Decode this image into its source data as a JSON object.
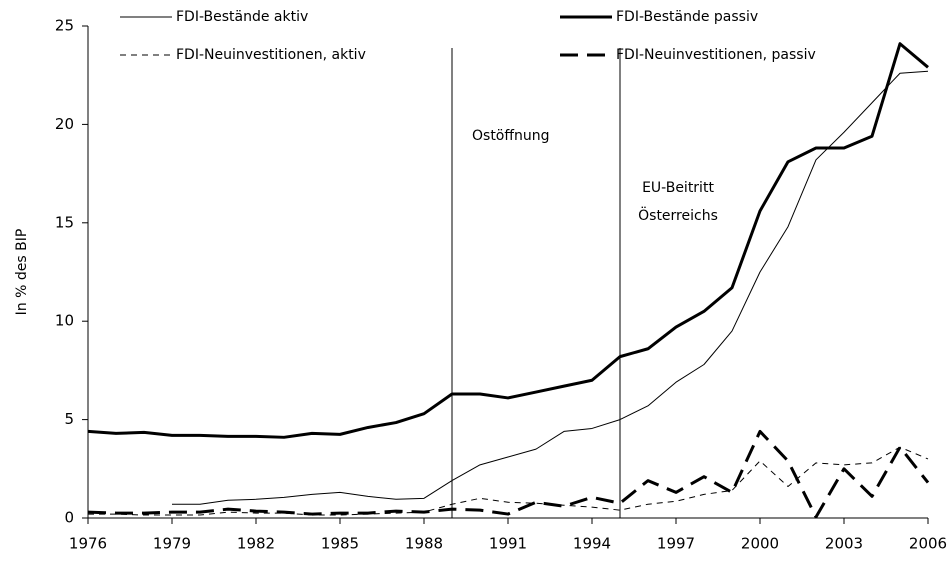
{
  "chart_data": {
    "type": "line",
    "y_label": "In % des BIP",
    "x": [
      1976,
      1977,
      1978,
      1979,
      1980,
      1981,
      1982,
      1983,
      1984,
      1985,
      1986,
      1987,
      1988,
      1989,
      1990,
      1991,
      1992,
      1993,
      1994,
      1995,
      1996,
      1997,
      1998,
      1999,
      2000,
      2001,
      2002,
      2003,
      2004,
      2005,
      2006
    ],
    "series": [
      {
        "name": "FDI-Bestände aktiv",
        "color": "#000000",
        "line_width": 1,
        "dashed": false,
        "values": [
          null,
          null,
          null,
          0.7,
          0.7,
          0.9,
          0.95,
          1.05,
          1.2,
          1.3,
          1.1,
          0.95,
          1.0,
          1.9,
          2.7,
          3.1,
          3.5,
          4.4,
          4.55,
          5.0,
          5.7,
          6.9,
          7.8,
          9.5,
          12.5,
          14.8,
          18.2,
          19.6,
          21.1,
          22.6,
          22.7
        ]
      },
      {
        "name": "FDI-Bestände passiv",
        "color": "#000000",
        "line_width": 3,
        "dashed": false,
        "values": [
          4.4,
          4.3,
          4.35,
          4.2,
          4.2,
          4.15,
          4.15,
          4.1,
          4.3,
          4.25,
          4.6,
          4.85,
          5.3,
          6.3,
          6.3,
          6.1,
          6.4,
          6.7,
          7.0,
          8.2,
          8.6,
          9.7,
          10.5,
          11.7,
          15.6,
          18.1,
          18.8,
          18.8,
          19.4,
          24.1,
          22.9
        ]
      },
      {
        "name": "FDI-Neuinvestitionen, aktiv",
        "color": "#000000",
        "line_width": 1,
        "dashed": true,
        "values": [
          0.2,
          0.2,
          0.15,
          0.15,
          0.15,
          0.3,
          0.25,
          0.25,
          0.15,
          0.15,
          0.2,
          0.25,
          0.3,
          0.7,
          1.0,
          0.8,
          0.75,
          0.65,
          0.55,
          0.4,
          0.7,
          0.85,
          1.2,
          1.4,
          2.9,
          1.6,
          2.8,
          2.7,
          2.8,
          3.6,
          3.0
        ]
      },
      {
        "name": "FDI-Neuinvestitionen, passiv",
        "color": "#000000",
        "line_width": 3,
        "dashed": true,
        "values": [
          0.3,
          0.25,
          0.25,
          0.3,
          0.3,
          0.45,
          0.35,
          0.3,
          0.2,
          0.25,
          0.25,
          0.35,
          0.3,
          0.45,
          0.4,
          0.2,
          0.8,
          0.6,
          1.05,
          0.75,
          1.9,
          1.3,
          2.1,
          1.3,
          4.4,
          2.9,
          0.05,
          2.5,
          1.1,
          3.6,
          1.8
        ]
      }
    ],
    "annotations": [
      {
        "x": 1989,
        "lines": [
          "Ostöffnung"
        ]
      },
      {
        "x": 1995,
        "lines": [
          "EU-Beitritt",
          "Österreichs"
        ]
      }
    ],
    "xlim": [
      1976,
      2006
    ],
    "xticks": [
      1976,
      1979,
      1982,
      1985,
      1988,
      1991,
      1994,
      1997,
      2000,
      2003,
      2006
    ],
    "ylim": [
      0,
      25
    ],
    "yticks": [
      0,
      5,
      10,
      15,
      20,
      25
    ],
    "grid": false
  }
}
